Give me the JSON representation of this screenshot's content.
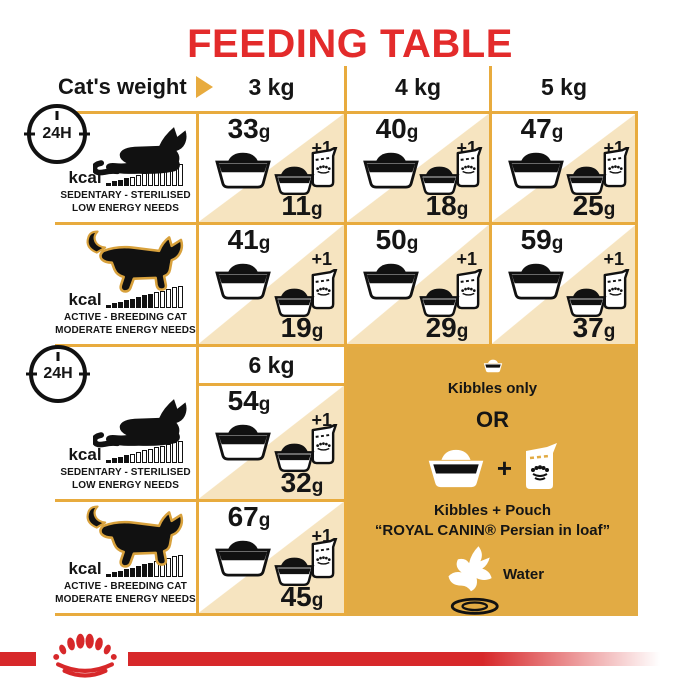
{
  "title": "FEEDING TABLE",
  "clock": {
    "label": "24H"
  },
  "header": {
    "label": "Cat's weight",
    "columns": [
      "3 kg",
      "4 kg",
      "5 kg"
    ],
    "column_6kg": "6 kg"
  },
  "labels": {
    "plus_one": "+1"
  },
  "units": {
    "grams": "g"
  },
  "profiles": {
    "sedentary": {
      "kcal": "kcal",
      "kcal_filled": 4,
      "kcal_total": 13,
      "line1": "SEDENTARY - STERILISED",
      "line2": "LOW ENERGY NEEDS"
    },
    "active": {
      "kcal": "kcal",
      "kcal_filled": 8,
      "kcal_total": 13,
      "line1": "ACTIVE - BREEDING CAT",
      "line2": "MODERATE ENERGY NEEDS"
    }
  },
  "table1": {
    "sedentary": {
      "cells": [
        {
          "kibbles": "33",
          "mixed": "11"
        },
        {
          "kibbles": "40",
          "mixed": "18"
        },
        {
          "kibbles": "47",
          "mixed": "25"
        }
      ]
    },
    "active": {
      "cells": [
        {
          "kibbles": "41",
          "mixed": "19"
        },
        {
          "kibbles": "50",
          "mixed": "29"
        },
        {
          "kibbles": "59",
          "mixed": "37"
        }
      ]
    }
  },
  "table2": {
    "sedentary": {
      "kibbles": "54",
      "mixed": "32"
    },
    "active": {
      "kibbles": "67",
      "mixed": "45"
    }
  },
  "panel": {
    "kibbles_only": "Kibbles only",
    "or": "OR",
    "plus": "+",
    "kibbles_pouch": "Kibbles + Pouch",
    "product": "“ROYAL CANIN® Persian in loaf”",
    "water": "Water"
  },
  "icons": {
    "clock": "24h-clock-icon",
    "cat_lying": "cat-lying-icon",
    "cat_walking": "cat-walking-icon",
    "kibble_bowl": "kibble-bowl-icon",
    "bowl_and_pouch": "bowl-and-pouch-icon",
    "pouch": "pouch-icon",
    "water": "water-splash-icon",
    "logo": "royal-canin-crown-logo",
    "arrow": "right-arrow-icon"
  },
  "colors": {
    "title_red": "#E32B2B",
    "footer_red": "#D7282A",
    "grid_gold": "#E8AB3E",
    "panel_gold": "#E2AB44",
    "triangle_tan": "#F6E4C0",
    "ink": "#151515"
  }
}
